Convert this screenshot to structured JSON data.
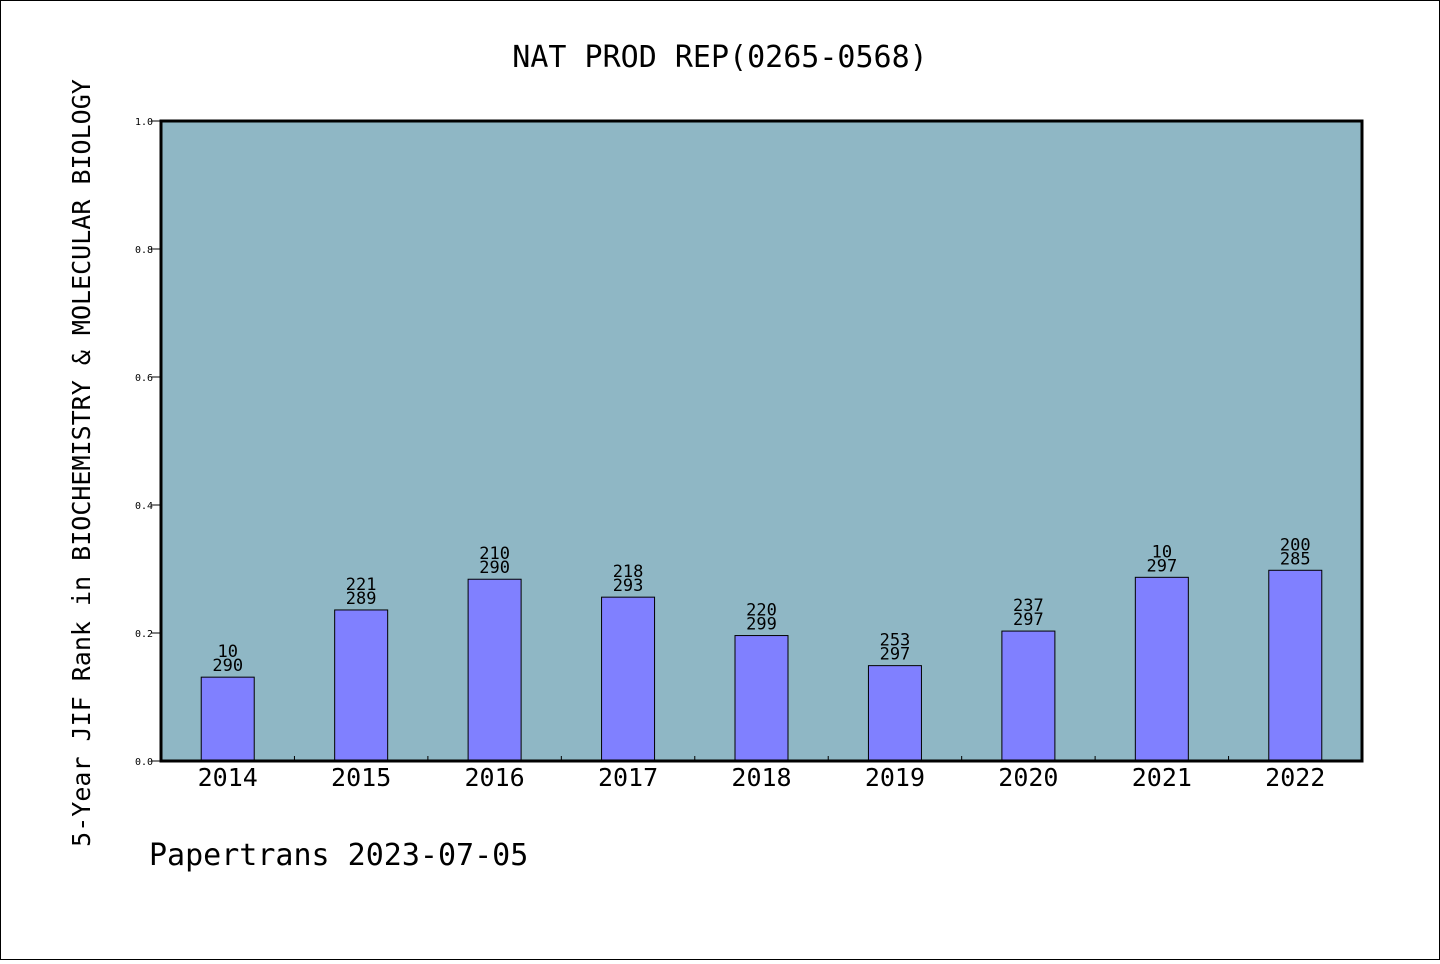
{
  "chart_data": {
    "type": "bar",
    "title": "NAT PROD REP(0265-0568)",
    "ylabel": "5-Year JIF Rank in BIOCHEMISTRY & MOLECULAR BIOLOGY",
    "xlabel": "",
    "ylim": [
      0,
      1.0
    ],
    "yticks": [
      "0.0",
      "0.2",
      "0.4",
      "0.6",
      "0.8",
      "1.0"
    ],
    "categories": [
      "2014",
      "2015",
      "2016",
      "2017",
      "2018",
      "2019",
      "2020",
      "2021",
      "2022"
    ],
    "values": [
      0.131,
      0.236,
      0.284,
      0.256,
      0.196,
      0.149,
      0.203,
      0.287,
      0.298
    ],
    "labels_top": [
      "10",
      "221",
      "210",
      "218",
      "220",
      "253",
      "237",
      "10",
      "200"
    ],
    "labels_bottom": [
      "290",
      "289",
      "290",
      "293",
      "299",
      "297",
      "297",
      "297",
      "285"
    ],
    "grid": false,
    "colors": {
      "plot_bg": "#8fb7c5",
      "bar": "#8080ff",
      "bar_edge": "#000000"
    }
  },
  "footer": "Papertrans 2023-07-05"
}
